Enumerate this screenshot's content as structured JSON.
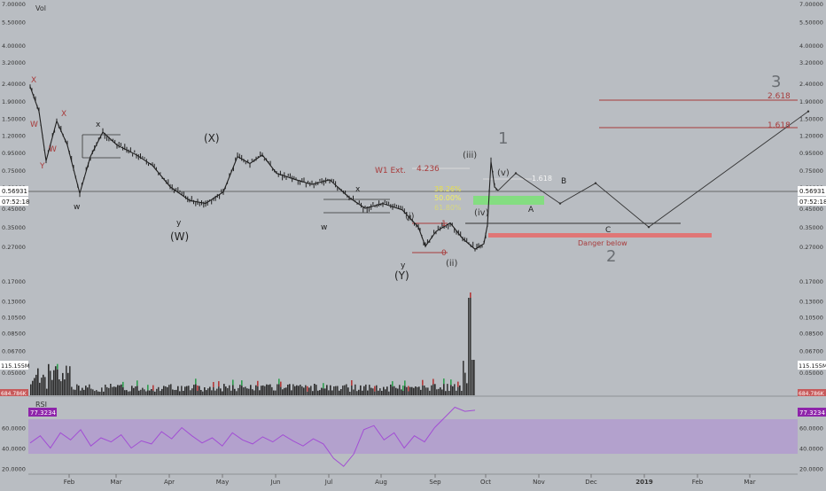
{
  "chart_data": {
    "type": "line",
    "instrument": {
      "volume_label": "Vol",
      "rsi_label": "RSI",
      "last_price": "0.56931",
      "countdown": "07:52:18",
      "volume_last": "115.155M",
      "volume_low": "684.786K",
      "rsi_last": "77.3234"
    },
    "colors": {
      "background": "#b9bdc2",
      "candle": "#1f1f1f",
      "wave_red": "#a83b3b",
      "danger": "#e07676",
      "target_zone": "#7ee07a",
      "rsi_band": "#b29ccf",
      "rsi_line": "#a24ed4",
      "badge": "#ffffff",
      "rsi_badge": "#8e24aa",
      "volume_up": "#2f9e4f",
      "volume_down": "#b43a3a"
    },
    "y_axis": {
      "scale": "log",
      "ticks": [
        "7.00000",
        "5.50000",
        "4.00000",
        "3.20000",
        "2.40000",
        "1.90000",
        "1.50000",
        "1.20000",
        "0.95000",
        "0.75000",
        "0.60000",
        "0.45000",
        "0.35000",
        "0.27000",
        "0.17000",
        "0.13000",
        "0.10500",
        "0.08500",
        "0.06700",
        "0.05000"
      ],
      "rsi_ticks": [
        "60.0000",
        "40.0000",
        "20.0000"
      ]
    },
    "x_axis": {
      "months": [
        "Feb",
        "Mar",
        "Apr",
        "May",
        "Jun",
        "Jul",
        "Aug",
        "Sep",
        "Oct",
        "Nov",
        "Dec",
        "2019",
        "Feb",
        "Mar"
      ]
    },
    "price_series": [
      {
        "x": "Jan 1",
        "y": 2.3
      },
      {
        "x": "Jan 6",
        "y": 1.65
      },
      {
        "x": "Jan 10",
        "y": 0.85
      },
      {
        "x": "Jan 16",
        "y": 1.45
      },
      {
        "x": "Jan 22",
        "y": 1.05
      },
      {
        "x": "Jan 29",
        "y": 0.55
      },
      {
        "x": "Feb 5",
        "y": 0.9
      },
      {
        "x": "Feb 12",
        "y": 1.25
      },
      {
        "x": "Feb 20",
        "y": 1.05
      },
      {
        "x": "Mar 1",
        "y": 0.92
      },
      {
        "x": "Mar 10",
        "y": 0.8
      },
      {
        "x": "Mar 20",
        "y": 0.6
      },
      {
        "x": "Apr 1",
        "y": 0.5
      },
      {
        "x": "Apr 10",
        "y": 0.48
      },
      {
        "x": "Apr 20",
        "y": 0.56
      },
      {
        "x": "Apr 28",
        "y": 0.9
      },
      {
        "x": "May 5",
        "y": 0.82
      },
      {
        "x": "May 12",
        "y": 0.92
      },
      {
        "x": "May 20",
        "y": 0.72
      },
      {
        "x": "Jun 1",
        "y": 0.66
      },
      {
        "x": "Jun 10",
        "y": 0.62
      },
      {
        "x": "Jun 20",
        "y": 0.66
      },
      {
        "x": "Jul 1",
        "y": 0.52
      },
      {
        "x": "Jul 10",
        "y": 0.45
      },
      {
        "x": "Jul 20",
        "y": 0.48
      },
      {
        "x": "Aug 1",
        "y": 0.44
      },
      {
        "x": "Aug 10",
        "y": 0.35
      },
      {
        "x": "Aug 14",
        "y": 0.27
      },
      {
        "x": "Aug 20",
        "y": 0.33
      },
      {
        "x": "Aug 28",
        "y": 0.37
      },
      {
        "x": "Sep 5",
        "y": 0.3
      },
      {
        "x": "Sep 12",
        "y": 0.26
      },
      {
        "x": "Sep 17",
        "y": 0.28
      },
      {
        "x": "Sep 19",
        "y": 0.36
      },
      {
        "x": "Sep 21",
        "y": 0.84
      },
      {
        "x": "Sep 23",
        "y": 0.6
      },
      {
        "x": "Sep 25",
        "y": 0.57
      }
    ],
    "rsi_series": [
      45,
      52,
      40,
      55,
      48,
      58,
      42,
      50,
      46,
      53,
      40,
      47,
      44,
      56,
      49,
      60,
      52,
      45,
      50,
      42,
      55,
      48,
      44,
      51,
      46,
      53,
      47,
      42,
      49,
      44,
      30,
      22,
      34,
      58,
      62,
      48,
      55,
      40,
      52,
      46,
      60,
      70,
      80,
      76,
      77
    ],
    "projection": [
      {
        "label": "(v)",
        "x": "Oct 5",
        "y": 0.72
      },
      {
        "label": "A",
        "x": "Oct 30",
        "y": 0.48
      },
      {
        "label": "B",
        "x": "Nov 20",
        "y": 0.63
      },
      {
        "label": "C",
        "x": "Dec 20",
        "y": 0.35
      },
      {
        "label": "3",
        "x": "Mar 20",
        "y": 1.65
      }
    ],
    "levels": {
      "w1_ext": "W1 Ext.",
      "ext_4236": "4.236",
      "fib_1618_v": "1.618",
      "fib_2618": "2.618",
      "fib_1618": "1.618",
      "pct_786": "38.26%",
      "pct_50": "50.00%",
      "pct_618": "61.80%",
      "danger_label": "Danger below",
      "zero": "0",
      "one": "1"
    },
    "wave_labels": {
      "big_X_top": "X",
      "w1": "W",
      "w2": "W",
      "x1": "X",
      "y1": "Y",
      "w_black": "w",
      "x_black": "x",
      "y_black": "y",
      "W_main": "(W)",
      "X_main": "(X)",
      "Y_main": "(Y)",
      "w_mid": "w",
      "x_mid": "x",
      "y_bottom": "y",
      "i": "(i)",
      "ii": "(ii)",
      "iii": "(iii)",
      "iv": "(iv)",
      "v": "(v)",
      "A": "A",
      "B": "B",
      "C": "C",
      "one_big": "1",
      "two_big": "2",
      "three_big": "3"
    }
  }
}
